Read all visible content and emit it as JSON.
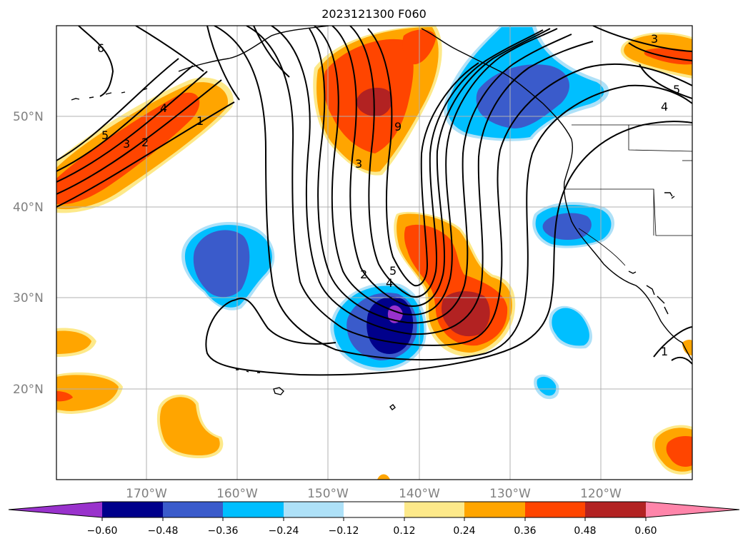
{
  "title": "2023121300 F060",
  "colors": {
    "n060": "#9932cc",
    "n048": "#00008b",
    "n036": "#3a5bcb",
    "n024": "#00bfff",
    "n012": "#aee1f8",
    "zero": "#ffffff",
    "p012": "#fde98a",
    "p024": "#ffa500",
    "p036": "#ff4500",
    "p048": "#b22222",
    "p060": "#ff85aa"
  },
  "lat_labels": [
    "50°N",
    "40°N",
    "30°N",
    "20°N"
  ],
  "lon_labels": [
    "170°W",
    "160°W",
    "150°W",
    "140°W",
    "130°W",
    "120°W"
  ],
  "colorbar": {
    "ticks": [
      "−0.60",
      "−0.48",
      "−0.36",
      "−0.24",
      "−0.12",
      "0.12",
      "0.24",
      "0.36",
      "0.48",
      "0.60"
    ]
  },
  "contour_labels": [
    "6",
    "5",
    "4",
    "3",
    "2",
    "1",
    "3",
    "9",
    "2",
    "5",
    "4",
    "3",
    "5",
    "4",
    "1"
  ]
}
